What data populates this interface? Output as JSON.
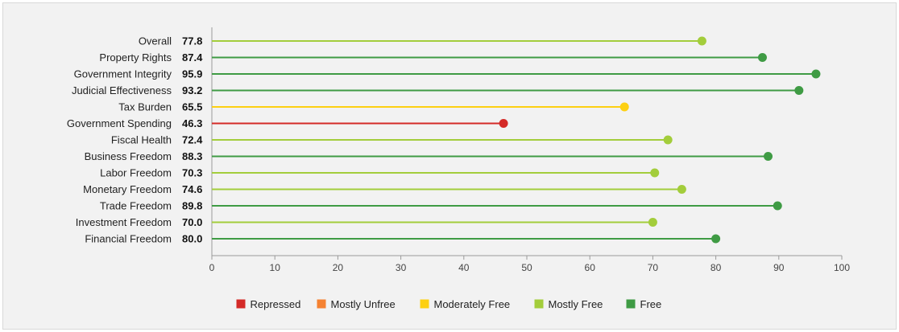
{
  "chart_data": {
    "type": "lollipop",
    "categories": [
      "Overall",
      "Property Rights",
      "Government Integrity",
      "Judicial Effectiveness",
      "Tax Burden",
      "Government Spending",
      "Fiscal Health",
      "Business Freedom",
      "Labor Freedom",
      "Monetary Freedom",
      "Trade Freedom",
      "Investment Freedom",
      "Financial Freedom"
    ],
    "values": [
      77.8,
      87.4,
      95.9,
      93.2,
      65.5,
      46.3,
      72.4,
      88.3,
      70.3,
      74.6,
      89.8,
      70.0,
      80.0
    ],
    "value_labels": [
      "77.8",
      "87.4",
      "95.9",
      "93.2",
      "65.5",
      "46.3",
      "72.4",
      "88.3",
      "70.3",
      "74.6",
      "89.8",
      "70.0",
      "80.0"
    ],
    "status": [
      "Mostly Free",
      "Free",
      "Free",
      "Free",
      "Moderately Free",
      "Repressed",
      "Mostly Free",
      "Free",
      "Mostly Free",
      "Mostly Free",
      "Free",
      "Mostly Free",
      "Free"
    ],
    "xlim": [
      0,
      100
    ],
    "xticks": [
      0,
      10,
      20,
      30,
      40,
      50,
      60,
      70,
      80,
      90,
      100
    ],
    "grid": false,
    "legend_position": "bottom-center",
    "legend": [
      {
        "label": "Repressed",
        "color": "#d42a27"
      },
      {
        "label": "Mostly Unfree",
        "color": "#f58232"
      },
      {
        "label": "Moderately Free",
        "color": "#fdd012"
      },
      {
        "label": "Mostly Free",
        "color": "#a3cd3b"
      },
      {
        "label": "Free",
        "color": "#3f9b44"
      }
    ]
  }
}
